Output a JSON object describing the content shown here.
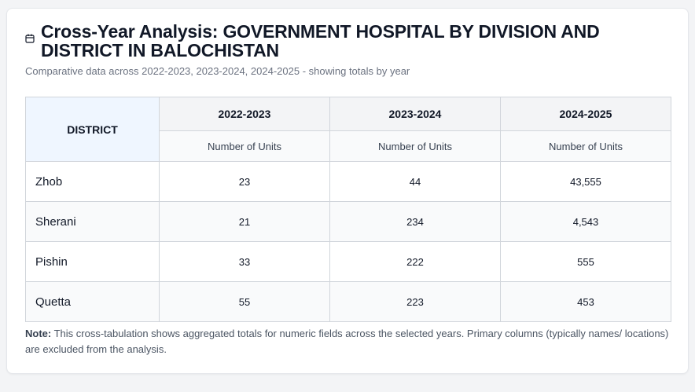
{
  "header": {
    "icon": "calendar-icon",
    "title": "Cross-Year Analysis: GOVERNMENT HOSPITAL BY DIVISION AND DISTRICT IN BALOCHISTAN",
    "subtitle": "Comparative data across 2022-2023, 2023-2024, 2024-2025 - showing totals by year"
  },
  "table": {
    "district_header": "DISTRICT",
    "years": [
      "2022-2023",
      "2023-2024",
      "2024-2025"
    ],
    "metric_label": "Number of Units",
    "rows": [
      {
        "district": "Zhob",
        "values": [
          "23",
          "44",
          "43,555"
        ]
      },
      {
        "district": "Sherani",
        "values": [
          "21",
          "234",
          "4,543"
        ]
      },
      {
        "district": "Pishin",
        "values": [
          "33",
          "222",
          "555"
        ]
      },
      {
        "district": "Quetta",
        "values": [
          "55",
          "223",
          "453"
        ]
      }
    ]
  },
  "note": {
    "label": "Note:",
    "text": "This cross-tabulation shows aggregated totals for numeric fields across the selected years. Primary columns (typically names/ locations) are excluded from the analysis."
  }
}
